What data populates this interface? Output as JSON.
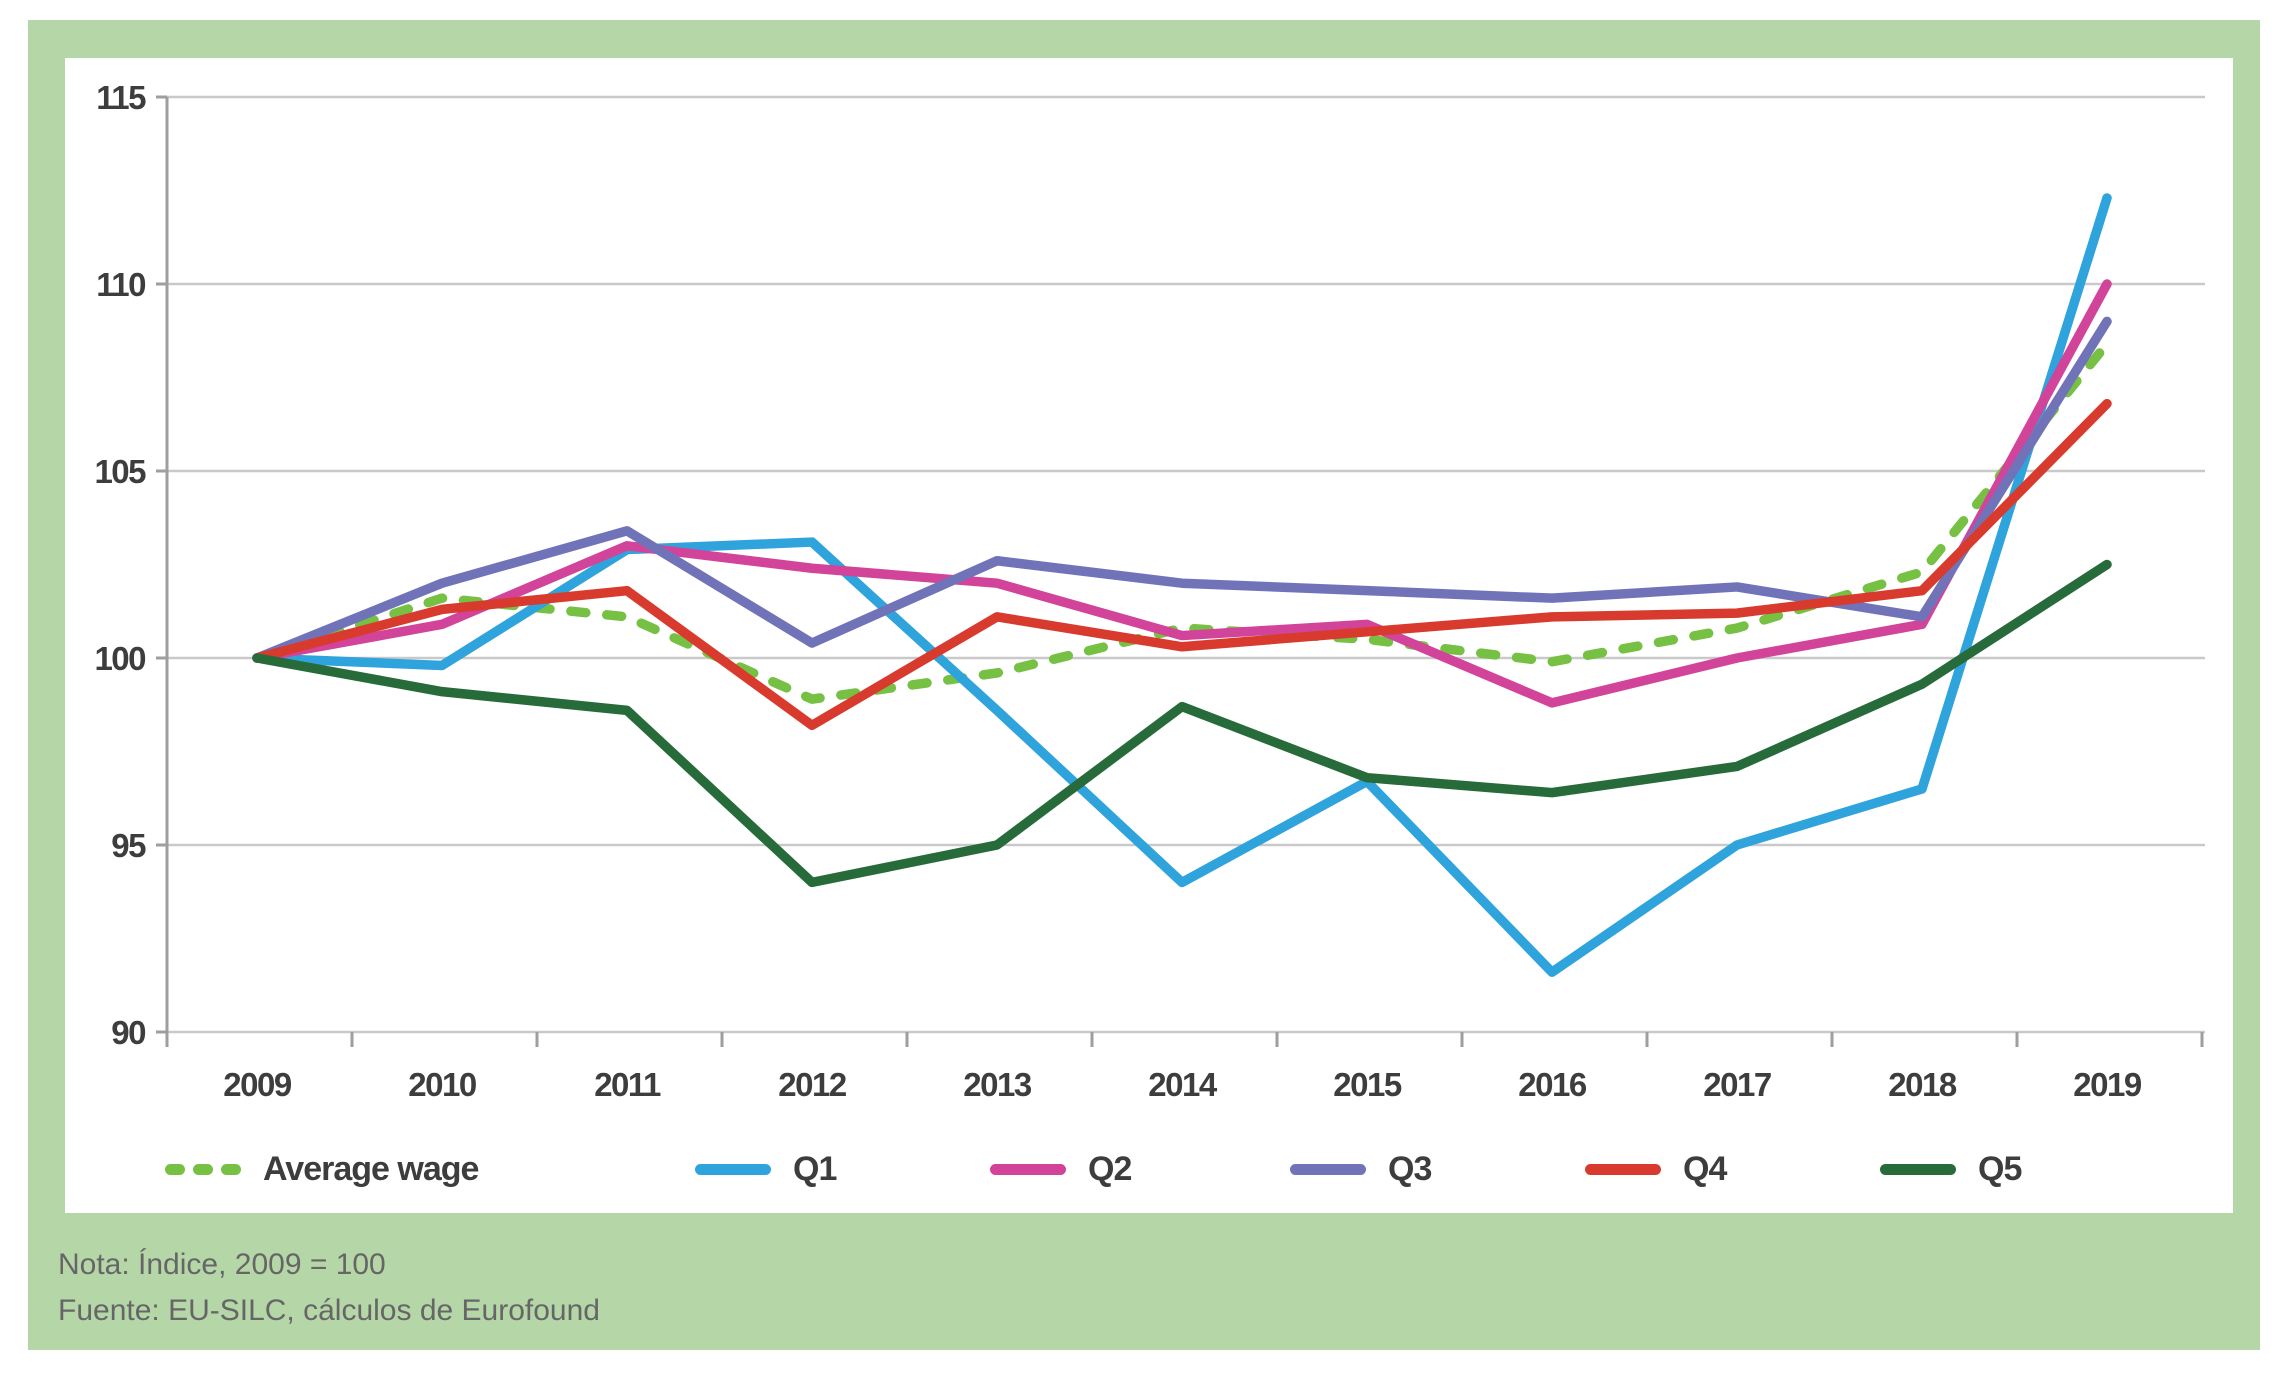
{
  "frame": {
    "background_color": "#b5d7a8",
    "panel_background": "#ffffff"
  },
  "chart_data": {
    "type": "line",
    "title": "",
    "categories": [
      2009,
      2010,
      2011,
      2012,
      2013,
      2014,
      2015,
      2016,
      2017,
      2018,
      2019
    ],
    "ylim": [
      90,
      115
    ],
    "yticks": [
      90,
      95,
      100,
      105,
      110,
      115
    ],
    "grid": "horizontal",
    "grid_color": "#c9c9c9",
    "axis_color": "#9e9e9e",
    "tick_text_color": "#3d3d3d",
    "legend_position": "bottom",
    "series": [
      {
        "name": "Average wage",
        "style": "dashed",
        "color": "#76c043",
        "values": [
          100,
          101.6,
          101.1,
          98.9,
          99.6,
          100.8,
          100.5,
          99.9,
          100.8,
          102.3,
          108.4
        ]
      },
      {
        "name": "Q1",
        "style": "solid",
        "color": "#2fa3dc",
        "values": [
          100,
          99.8,
          102.9,
          103.1,
          98.6,
          94.0,
          96.7,
          91.6,
          95.0,
          96.5,
          112.3
        ]
      },
      {
        "name": "Q2",
        "style": "solid",
        "color": "#d2439a",
        "values": [
          100,
          100.9,
          103.0,
          102.4,
          102.0,
          100.6,
          100.9,
          98.8,
          100.0,
          100.9,
          110.0
        ]
      },
      {
        "name": "Q3",
        "style": "solid",
        "color": "#7173b9",
        "values": [
          100,
          102.0,
          103.4,
          100.4,
          102.6,
          102.0,
          101.8,
          101.6,
          101.9,
          101.1,
          109.0
        ]
      },
      {
        "name": "Q4",
        "style": "solid",
        "color": "#d83b2e",
        "values": [
          100,
          101.3,
          101.8,
          98.2,
          101.1,
          100.3,
          100.7,
          101.1,
          101.2,
          101.8,
          106.8
        ]
      },
      {
        "name": "Q5",
        "style": "solid",
        "color": "#266b39",
        "values": [
          100,
          99.1,
          98.6,
          94.0,
          95.0,
          98.7,
          96.8,
          96.4,
          97.1,
          99.3,
          102.5
        ]
      }
    ]
  },
  "notes": {
    "line1": "Nota: Índice, 2009 = 100",
    "line2": "Fuente: EU-SILC, cálculos de Eurofound"
  }
}
